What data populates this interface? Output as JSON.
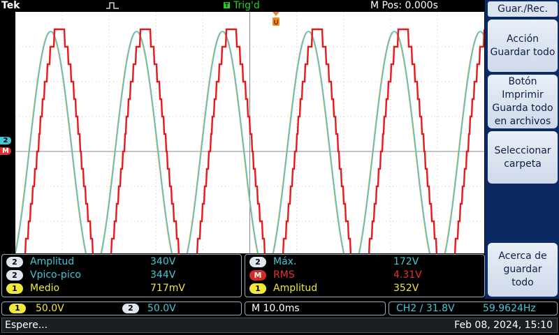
{
  "header": {
    "brand": "Tek",
    "trigger_badge": "T",
    "trigger_status": "Trig'd",
    "position": "M Pos: 0.000s"
  },
  "markers": {
    "ch2": "2",
    "math": "M"
  },
  "menu": {
    "title": "Guar./Rec.",
    "buttons": [
      {
        "lines": [
          "Acción",
          "Guardar todo"
        ]
      },
      {
        "lines": [
          "Botón",
          "Imprimir",
          "Guarda todo",
          "en archivos"
        ]
      },
      {
        "lines": [
          "Seleccionar",
          "carpeta"
        ]
      },
      {
        "lines": [
          "Acerca de",
          "guardar",
          "todo"
        ]
      }
    ]
  },
  "measurements": {
    "left": [
      {
        "badge": "2",
        "name": "Amplitud",
        "value": "340V"
      },
      {
        "badge": "2",
        "name": "Vpico-pico",
        "value": "344V"
      },
      {
        "badge": "1",
        "name": "Medio",
        "value": "717mV"
      }
    ],
    "right": [
      {
        "badge": "2",
        "name": "Máx.",
        "value": "172V"
      },
      {
        "badge": "M",
        "name": "RMS",
        "value": "4.31V"
      },
      {
        "badge": "1",
        "name": "Amplitud",
        "value": "352V"
      }
    ]
  },
  "status": {
    "ch1_badge": "1",
    "ch1_scale": "50.0V",
    "ch2_badge": "2",
    "ch2_scale": "50.0V",
    "timebase": "M 10.0ms",
    "trigger": "CH2 ∕ 31.8V",
    "frequency": "59.9624Hz"
  },
  "footer": {
    "message": "Espere...",
    "datetime": "Feb 08, 2024, 15:10"
  },
  "colors": {
    "ch1": "#f0e83a",
    "ch2": "#45c7d4",
    "math": "#e0302f",
    "trig": "#22d322"
  }
}
